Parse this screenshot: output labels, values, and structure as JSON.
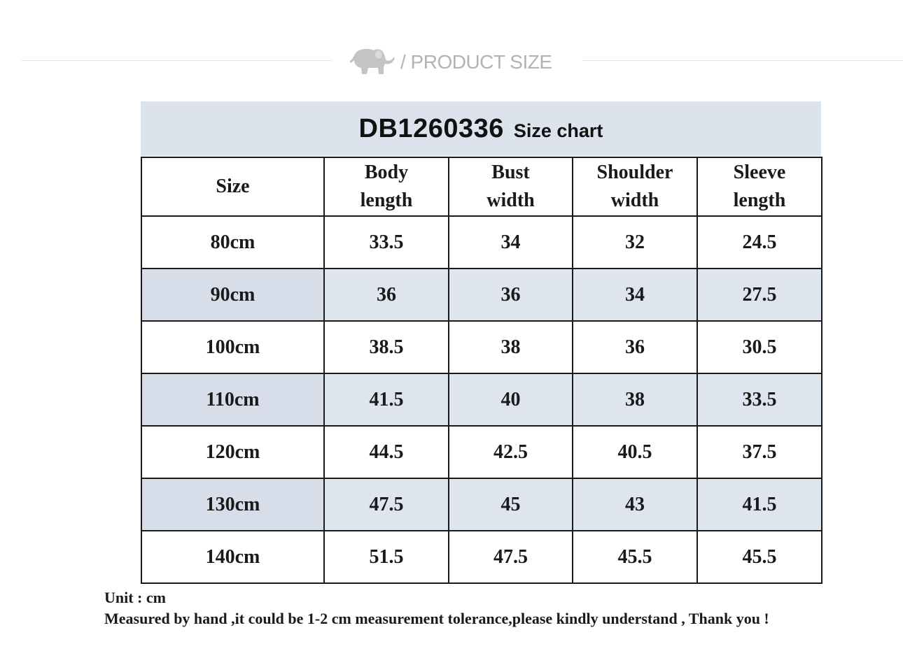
{
  "section": {
    "title": "/ PRODUCT SIZE",
    "icon": "elephant-icon"
  },
  "chart": {
    "code": "DB1260336",
    "subtitle": "Size chart",
    "banner_color": "#dde3ec",
    "stripe_color": "#dfe5ef"
  },
  "table": {
    "headers": [
      [
        "Size"
      ],
      [
        "Body",
        "length"
      ],
      [
        "Bust",
        "width"
      ],
      [
        "Shoulder",
        "width"
      ],
      [
        "Sleeve",
        "length"
      ]
    ],
    "rows": [
      [
        "80cm",
        "33.5",
        "34",
        "32",
        "24.5"
      ],
      [
        "90cm",
        "36",
        "36",
        "34",
        "27.5"
      ],
      [
        "100cm",
        "38.5",
        "38",
        "36",
        "30.5"
      ],
      [
        "110cm",
        "41.5",
        "40",
        "38",
        "33.5"
      ],
      [
        "120cm",
        "44.5",
        "42.5",
        "40.5",
        "37.5"
      ],
      [
        "130cm",
        "47.5",
        "45",
        "43",
        "41.5"
      ],
      [
        "140cm",
        "51.5",
        "47.5",
        "45.5",
        "45.5"
      ]
    ]
  },
  "notes": {
    "unit": "Unit : cm",
    "tolerance": "Measured by hand ,it could be 1-2 cm measurement tolerance,please kindly understand , Thank you !"
  }
}
